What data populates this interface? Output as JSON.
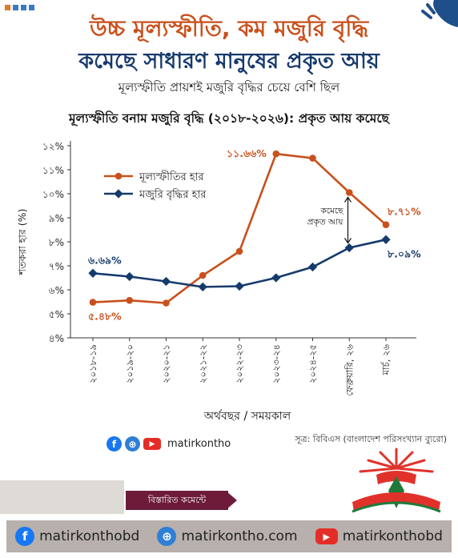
{
  "header": {
    "line1": "উচ্চ মূল্যস্ফীতি, কম মজুরি বৃদ্ধি",
    "line2": "কমেছে সাধারণ মানুষের প্রকৃত আয়",
    "subhead": "মূল্যস্ফীতি প্রায়শই মজুরি বৃদ্ধির চেয়ে বেশি ছিল"
  },
  "chart_data": {
    "type": "line",
    "title": "মূল্যস্ফীতি বনাম মজুরি বৃদ্ধি (২০১৮-২০২৬): প্রকৃত আয় কমেছে",
    "xlabel": "অর্থবছর / সময়কাল",
    "ylabel": "শতকরা হার (%)",
    "ylim": [
      4,
      12
    ],
    "yticks": [
      "৪%",
      "৫%",
      "৬%",
      "৭%",
      "৮%",
      "৯%",
      "১০%",
      "১১%",
      "১২%"
    ],
    "categories": [
      "২০১৮-১৯",
      "২০১৯-২০",
      "২০২০-২১",
      "২০২১-২২",
      "২০২২-২৩",
      "২০২৩-২৪",
      "২০২৪-২৫",
      "ফেব্রুয়ারি, ২৬",
      "মার্চ, ২৬"
    ],
    "series": [
      {
        "name": "মূল্যস্ফীতির হার",
        "color": "#c9501c",
        "values": [
          5.48,
          5.56,
          5.45,
          6.6,
          7.6,
          11.66,
          11.48,
          10.05,
          8.71
        ]
      },
      {
        "name": "মজুরি বৃদ্ধির হার",
        "color": "#163a6b",
        "values": [
          6.69,
          6.55,
          6.35,
          6.12,
          6.15,
          6.5,
          6.95,
          7.75,
          8.09
        ]
      }
    ],
    "labels": {
      "start_wage": "৬.৬৯%",
      "start_infl": "৫.৪৮%",
      "peak_infl": "১১.৬৬%",
      "end_infl": "৮.৭১%",
      "end_wage": "৮.০৯%"
    },
    "annotation": [
      "কমেছে",
      "প্রকৃত আয়"
    ],
    "legend_position": "top-left",
    "grid": false
  },
  "source": "সূত্র: বিবিএস (বাংলাদেশ পরিসংখ্যান ব্যুরো)",
  "social": {
    "handle": "matirkontho"
  },
  "cta": {
    "label": "বিস্তারিত কমেন্টে"
  },
  "footer": {
    "facebook": "matirkonthobd",
    "website": "matirkontho.com",
    "youtube": "matirkonthobd"
  },
  "colors": {
    "orange": "#c9501c",
    "navy": "#163a6b",
    "maroon": "#6e1b3a",
    "footer_bg": "#b7b0ac"
  },
  "icons": [
    "facebook-icon",
    "globe-icon",
    "youtube-icon",
    "pen-logo-icon"
  ]
}
